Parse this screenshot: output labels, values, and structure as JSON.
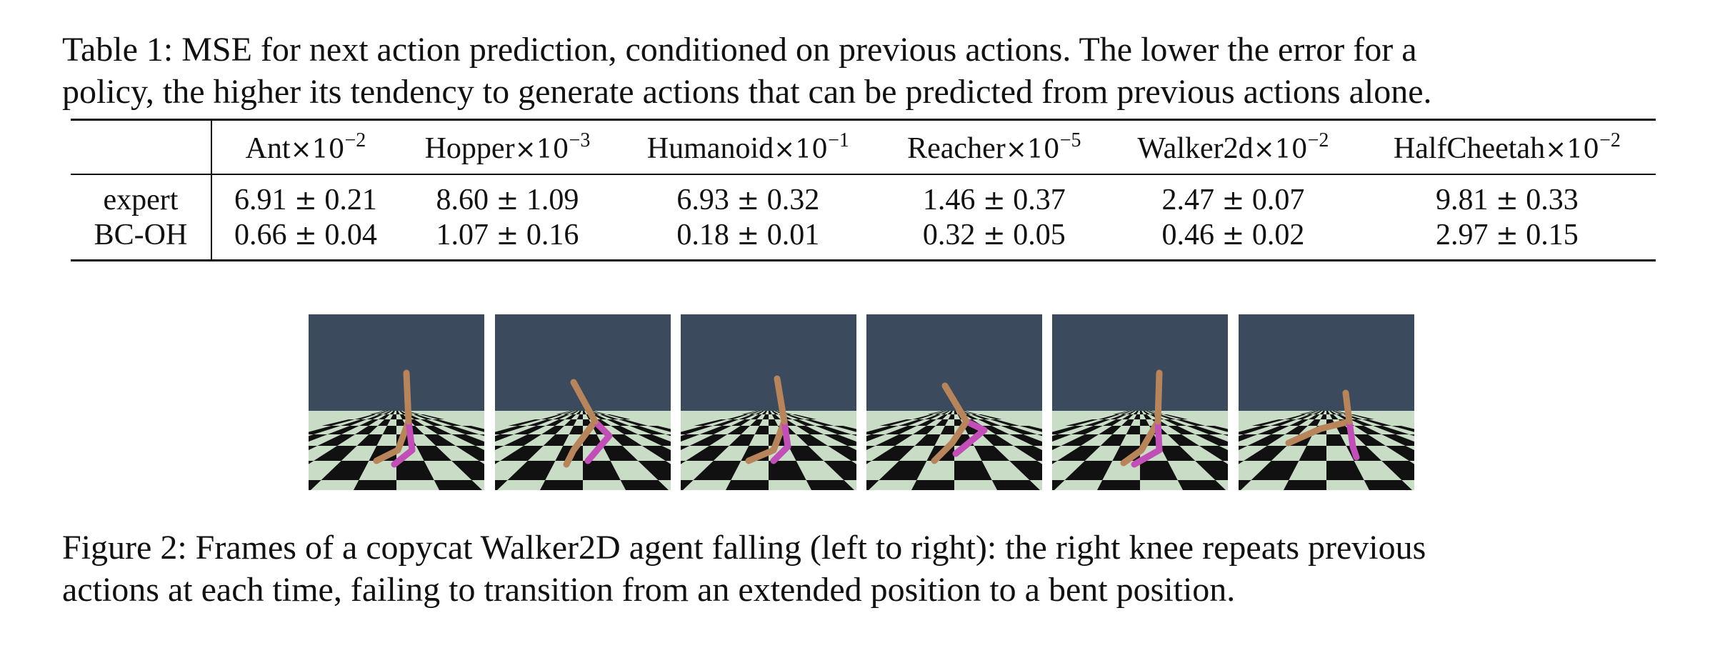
{
  "table_caption": {
    "line1": "Table 1: MSE for next action prediction, conditioned on previous actions. The lower the error for a",
    "line2": "policy, the higher its tendency to generate actions that can be predicted from previous actions alone."
  },
  "table": {
    "columns": [
      {
        "name": "Ant",
        "times": "×10",
        "exp": "−2"
      },
      {
        "name": "Hopper",
        "times": "×10",
        "exp": "−3"
      },
      {
        "name": "Humanoid",
        "times": "×10",
        "exp": "−1"
      },
      {
        "name": "Reacher",
        "times": "×10",
        "exp": "−5"
      },
      {
        "name": "Walker2d",
        "times": "×10",
        "exp": "−2"
      },
      {
        "name": "HalfCheetah",
        "times": "×10",
        "exp": "−2"
      }
    ],
    "rows": [
      {
        "label": "expert",
        "cells": [
          {
            "mean": "6.91",
            "pm": "±",
            "std": "0.21"
          },
          {
            "mean": "8.60",
            "pm": "±",
            "std": "1.09"
          },
          {
            "mean": "6.93",
            "pm": "±",
            "std": "0.32"
          },
          {
            "mean": "1.46",
            "pm": "±",
            "std": "0.37"
          },
          {
            "mean": "2.47",
            "pm": "±",
            "std": "0.07"
          },
          {
            "mean": "9.81",
            "pm": "±",
            "std": "0.33"
          }
        ]
      },
      {
        "label": "BC-OH",
        "cells": [
          {
            "mean": "0.66",
            "pm": "±",
            "std": "0.04"
          },
          {
            "mean": "1.07",
            "pm": "±",
            "std": "0.16"
          },
          {
            "mean": "0.18",
            "pm": "±",
            "std": "0.01"
          },
          {
            "mean": "0.32",
            "pm": "±",
            "std": "0.05"
          },
          {
            "mean": "0.46",
            "pm": "±",
            "std": "0.02"
          },
          {
            "mean": "2.97",
            "pm": "±",
            "std": "0.15"
          }
        ]
      }
    ]
  },
  "figure": {
    "frames": [
      {
        "id": "frame-1"
      },
      {
        "id": "frame-2"
      },
      {
        "id": "frame-3"
      },
      {
        "id": "frame-4"
      },
      {
        "id": "frame-5"
      },
      {
        "id": "frame-6"
      }
    ],
    "colors": {
      "sky": "#3b4a5c",
      "floor_light": "#c8dcc6",
      "floor_dark": "#111111",
      "torso": "#b8845a",
      "right_leg": "#c24fb8"
    }
  },
  "figure_caption": {
    "line1": "Figure 2: Frames of a copycat Walker2D agent falling (left to right): the right knee repeats previous",
    "line2": "actions at each time, failing to transition from an extended position to a bent position."
  }
}
